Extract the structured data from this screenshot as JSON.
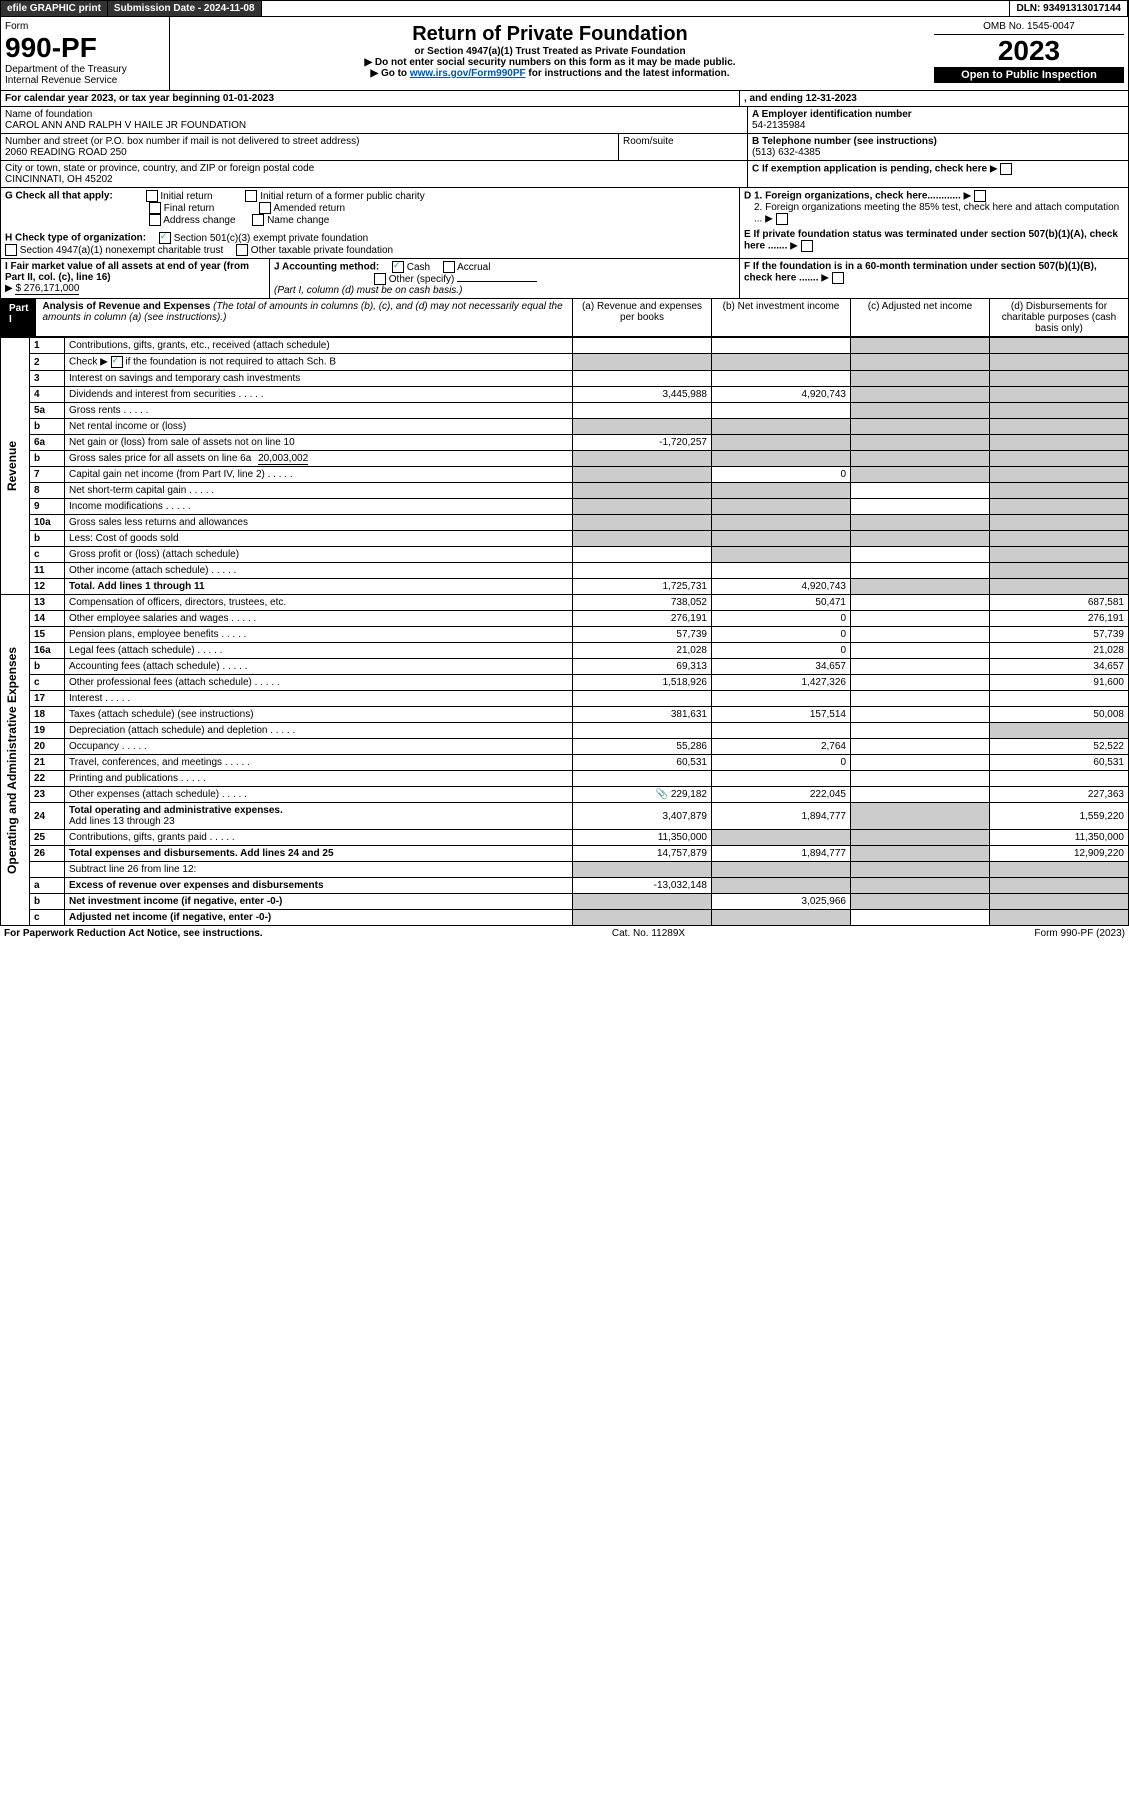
{
  "topbar": {
    "efile": "efile GRAPHIC print",
    "subdate_label": "Submission Date - 2024-11-08",
    "dln": "DLN: 93491313017144"
  },
  "header": {
    "form": "Form",
    "formnum": "990-PF",
    "dept": "Department of the Treasury",
    "irs": "Internal Revenue Service",
    "title": "Return of Private Foundation",
    "sub1": "or Section 4947(a)(1) Trust Treated as Private Foundation",
    "sub2": "▶ Do not enter social security numbers on this form as it may be made public.",
    "sub3_pre": "▶ Go to ",
    "sub3_link": "www.irs.gov/Form990PF",
    "sub3_post": " for instructions and the latest information.",
    "omb": "OMB No. 1545-0047",
    "year": "2023",
    "open": "Open to Public Inspection"
  },
  "cal": {
    "text": "For calendar year 2023, or tax year beginning 01-01-2023",
    "end": ", and ending 12-31-2023"
  },
  "id": {
    "name_lbl": "Name of foundation",
    "name": "CAROL ANN AND RALPH V HAILE JR FOUNDATION",
    "addr_lbl": "Number and street (or P.O. box number if mail is not delivered to street address)",
    "room_lbl": "Room/suite",
    "addr": "2060 READING ROAD 250",
    "city_lbl": "City or town, state or province, country, and ZIP or foreign postal code",
    "city": "CINCINNATI, OH  45202",
    "A": "A Employer identification number",
    "ein": "54-2135984",
    "B": "B Telephone number (see instructions)",
    "phone": "(513) 632-4385",
    "C": "C If exemption application is pending, check here",
    "D1": "D 1. Foreign organizations, check here............",
    "D2": "2. Foreign organizations meeting the 85% test, check here and attach computation ...",
    "E": "E  If private foundation status was terminated under section 507(b)(1)(A), check here .......",
    "F": "F  If the foundation is in a 60-month termination under section 507(b)(1)(B), check here ......."
  },
  "G": {
    "lbl": "G Check all that apply:",
    "o1": "Initial return",
    "o2": "Final return",
    "o3": "Address change",
    "o4": "Initial return of a former public charity",
    "o5": "Amended return",
    "o6": "Name change"
  },
  "H": {
    "lbl": "H Check type of organization:",
    "o1": "Section 501(c)(3) exempt private foundation",
    "o2": "Section 4947(a)(1) nonexempt charitable trust",
    "o3": "Other taxable private foundation"
  },
  "I": {
    "lbl": "I Fair market value of all assets at end of year (from Part II, col. (c), line 16)",
    "val": "$  276,171,000"
  },
  "J": {
    "lbl": "J Accounting method:",
    "cash": "Cash",
    "accrual": "Accrual",
    "other": "Other (specify)",
    "note": "(Part I, column (d) must be on cash basis.)"
  },
  "part1": {
    "hdr": "Part I",
    "title": "Analysis of Revenue and Expenses",
    "note": "(The total of amounts in columns (b), (c), and (d) may not necessarily equal the amounts in column (a) (see instructions).)",
    "colA": "(a)   Revenue and expenses per books",
    "colB": "(b)   Net investment income",
    "colC": "(c)   Adjusted net income",
    "colD": "(d)   Disbursements for charitable purposes (cash basis only)"
  },
  "sections": {
    "rev": "Revenue",
    "exp": "Operating and Administrative Expenses"
  },
  "lines": {
    "1": {
      "t": "Contributions, gifts, grants, etc., received (attach schedule)"
    },
    "2": {
      "t": "Check ▶",
      "t2": " if the foundation is not required to attach Sch. B"
    },
    "3": {
      "t": "Interest on savings and temporary cash investments"
    },
    "4": {
      "t": "Dividends and interest from securities",
      "a": "3,445,988",
      "b": "4,920,743"
    },
    "5a": {
      "t": "Gross rents"
    },
    "5b": {
      "t": "Net rental income or (loss)"
    },
    "6a": {
      "t": "Net gain or (loss) from sale of assets not on line 10",
      "a": "-1,720,257"
    },
    "6b": {
      "t": "Gross sales price for all assets on line 6a",
      "v": "20,003,002"
    },
    "7": {
      "t": "Capital gain net income (from Part IV, line 2)",
      "b": "0"
    },
    "8": {
      "t": "Net short-term capital gain"
    },
    "9": {
      "t": "Income modifications"
    },
    "10a": {
      "t": "Gross sales less returns and allowances"
    },
    "10b": {
      "t": "Less: Cost of goods sold"
    },
    "10c": {
      "t": "Gross profit or (loss) (attach schedule)"
    },
    "11": {
      "t": "Other income (attach schedule)"
    },
    "12": {
      "t": "Total. Add lines 1 through 11",
      "a": "1,725,731",
      "b": "4,920,743"
    },
    "13": {
      "t": "Compensation of officers, directors, trustees, etc.",
      "a": "738,052",
      "b": "50,471",
      "d": "687,581"
    },
    "14": {
      "t": "Other employee salaries and wages",
      "a": "276,191",
      "b": "0",
      "d": "276,191"
    },
    "15": {
      "t": "Pension plans, employee benefits",
      "a": "57,739",
      "b": "0",
      "d": "57,739"
    },
    "16a": {
      "t": "Legal fees (attach schedule)",
      "a": "21,028",
      "b": "0",
      "d": "21,028"
    },
    "16b": {
      "t": "Accounting fees (attach schedule)",
      "a": "69,313",
      "b": "34,657",
      "d": "34,657"
    },
    "16c": {
      "t": "Other professional fees (attach schedule)",
      "a": "1,518,926",
      "b": "1,427,326",
      "d": "91,600"
    },
    "17": {
      "t": "Interest"
    },
    "18": {
      "t": "Taxes (attach schedule) (see instructions)",
      "a": "381,631",
      "b": "157,514",
      "d": "50,008"
    },
    "19": {
      "t": "Depreciation (attach schedule) and depletion"
    },
    "20": {
      "t": "Occupancy",
      "a": "55,286",
      "b": "2,764",
      "d": "52,522"
    },
    "21": {
      "t": "Travel, conferences, and meetings",
      "a": "60,531",
      "b": "0",
      "d": "60,531"
    },
    "22": {
      "t": "Printing and publications"
    },
    "23": {
      "t": "Other expenses (attach schedule)",
      "a": "229,182",
      "b": "222,045",
      "d": "227,363"
    },
    "24": {
      "t": "Total operating and administrative expenses.",
      "t2": "Add lines 13 through 23",
      "a": "3,407,879",
      "b": "1,894,777",
      "d": "1,559,220"
    },
    "25": {
      "t": "Contributions, gifts, grants paid",
      "a": "11,350,000",
      "d": "11,350,000"
    },
    "26": {
      "t": "Total expenses and disbursements. Add lines 24 and 25",
      "a": "14,757,879",
      "b": "1,894,777",
      "d": "12,909,220"
    },
    "27": {
      "t": "Subtract line 26 from line 12:"
    },
    "27a": {
      "t": "Excess of revenue over expenses and disbursements",
      "a": "-13,032,148"
    },
    "27b": {
      "t": "Net investment income (if negative, enter -0-)",
      "b": "3,025,966"
    },
    "27c": {
      "t": "Adjusted net income (if negative, enter -0-)"
    }
  },
  "footer": {
    "left": "For Paperwork Reduction Act Notice, see instructions.",
    "mid": "Cat. No. 11289X",
    "right": "Form 990-PF (2023)"
  },
  "colors": {
    "grey": "#cccccc",
    "link": "#0055aa",
    "check": "#22aa77"
  }
}
